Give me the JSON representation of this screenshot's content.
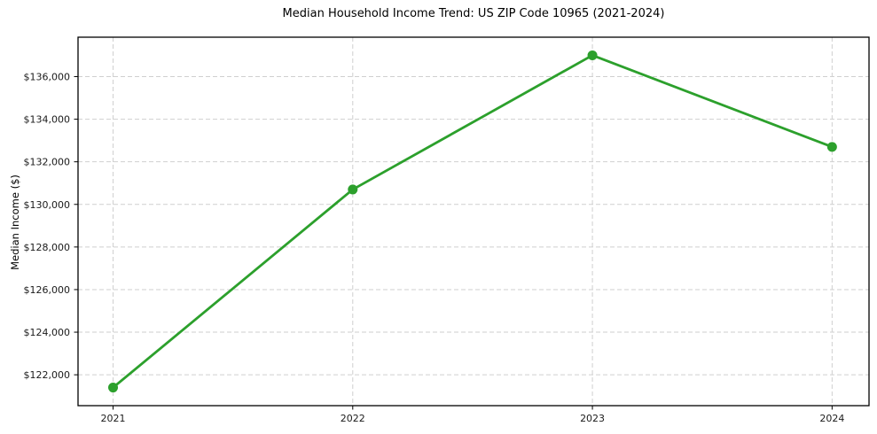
{
  "chart_data": {
    "type": "line",
    "title": "Median Household Income Trend: US ZIP Code 10965 (2021-2024)",
    "xlabel": "",
    "ylabel": "Median Income ($)",
    "categories": [
      "2021",
      "2022",
      "2023",
      "2024"
    ],
    "series": [
      {
        "name": "Median Household Income",
        "values": [
          121400,
          130700,
          137000,
          132700
        ]
      }
    ],
    "ytick_values": [
      122000,
      124000,
      126000,
      128000,
      130000,
      132000,
      134000,
      136000
    ],
    "ytick_labels": [
      "$122,000",
      "$124,000",
      "$126,000",
      "$128,000",
      "$130,000",
      "$132,000",
      "$134,000",
      "$136,000"
    ],
    "ylim": [
      120550,
      137850
    ],
    "grid": true,
    "legend": "none",
    "line_color": "#2ca02c",
    "marker": "circle",
    "background_color": "#ffffff"
  }
}
